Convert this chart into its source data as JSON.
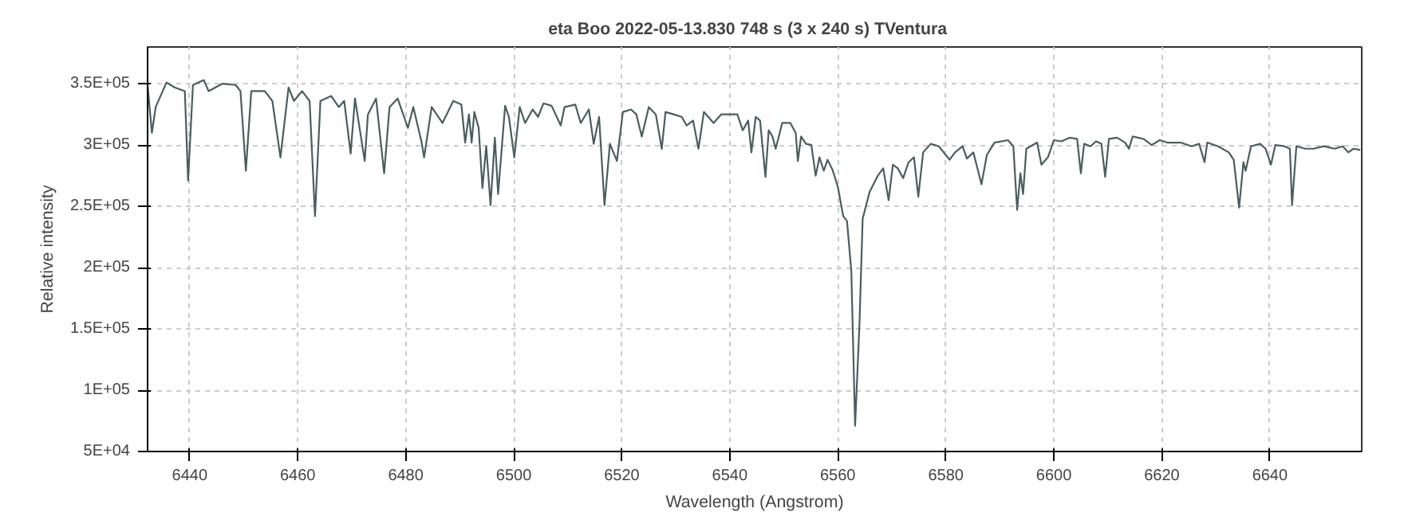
{
  "chart_data": {
    "type": "line",
    "title": "eta Boo  2022-05-13.830  748 s (3 x 240 s)  TVentura",
    "xlabel": "Wavelength (Angstrom)",
    "ylabel": "Relative intensity",
    "x": [
      6432.2,
      6433.0,
      6433.7,
      6435.7,
      6437.2,
      6439.1,
      6439.7,
      6440.6,
      6442.6,
      6443.5,
      6446.0,
      6448.5,
      6449.4,
      6450.4,
      6451.4,
      6453.9,
      6455.3,
      6456.8,
      6458.3,
      6459.3,
      6460.8,
      6462.2,
      6463.2,
      6464.2,
      6466.2,
      6467.6,
      6468.6,
      6469.8,
      6470.6,
      6472.4,
      6473.0,
      6474.5,
      6476.0,
      6477.0,
      6478.5,
      6480.4,
      6481.4,
      6482.9,
      6483.4,
      6484.8,
      6486.8,
      6488.8,
      6490.3,
      6491.0,
      6491.7,
      6492.2,
      6492.7,
      6493.5,
      6494.2,
      6494.9,
      6495.7,
      6496.5,
      6497.1,
      6498.4,
      6499.1,
      6500.1,
      6501.1,
      6502.1,
      6503.5,
      6504.5,
      6505.5,
      6507.0,
      6508.7,
      6509.4,
      6511.4,
      6512.4,
      6513.9,
      6514.8,
      6515.8,
      6516.8,
      6517.8,
      6519.1,
      6520.2,
      6521.7,
      6522.7,
      6523.7,
      6525.0,
      6526.3,
      6527.4,
      6528.1,
      6529.6,
      6531.1,
      6532.0,
      6533.2,
      6534.2,
      6535.2,
      6537.0,
      6538.4,
      6539.9,
      6541.4,
      6542.4,
      6543.4,
      6544.0,
      6544.8,
      6545.6,
      6546.6,
      6547.2,
      6547.9,
      6548.5,
      6549.7,
      6551.2,
      6552.2,
      6552.6,
      6553.2,
      6554.1,
      6555.1,
      6555.9,
      6556.6,
      6557.4,
      6558.1,
      6559.0,
      6560.0,
      6561.0,
      6561.7,
      6562.5,
      6563.2,
      6564.0,
      6564.6,
      6565.9,
      6567.4,
      6568.4,
      6569.4,
      6570.2,
      6571.1,
      6572.1,
      6573.1,
      6574.1,
      6574.9,
      6575.8,
      6577.2,
      6578.7,
      6580.7,
      6581.7,
      6583.1,
      6583.9,
      6585.1,
      6586.6,
      6587.6,
      6589.0,
      6591.5,
      6592.5,
      6593.2,
      6593.8,
      6594.3,
      6594.9,
      6596.9,
      6597.7,
      6598.9,
      6600.0,
      6601.4,
      6602.9,
      6604.3,
      6605.0,
      6605.6,
      6606.8,
      6607.8,
      6608.8,
      6609.5,
      6610.2,
      6611.7,
      6613.2,
      6613.9,
      6614.6,
      6616.6,
      6618.1,
      6619.6,
      6621.0,
      6623.5,
      6625.5,
      6626.9,
      6627.9,
      6628.4,
      6630.4,
      6632.4,
      6633.3,
      6634.3,
      6635.1,
      6635.5,
      6636.5,
      6638.2,
      6639.2,
      6640.2,
      6641.0,
      6642.7,
      6643.7,
      6644.1,
      6644.9,
      6646.6,
      6648.1,
      6650.0,
      6652.0,
      6653.5,
      6654.5,
      6655.5,
      6656.7
    ],
    "series": [
      {
        "color": "#4a5e5e",
        "values": [
          349000,
          310000,
          331000,
          351000,
          347000,
          344000,
          271000,
          349000,
          353000,
          344000,
          350000,
          349000,
          344000,
          279000,
          344000,
          344000,
          336000,
          290000,
          347000,
          336000,
          344000,
          336000,
          242000,
          336000,
          340000,
          331000,
          336000,
          293000,
          338000,
          287000,
          325000,
          338000,
          277000,
          331000,
          338000,
          314000,
          331000,
          303000,
          290000,
          331000,
          318000,
          336000,
          333000,
          302000,
          325000,
          302000,
          327000,
          314000,
          265000,
          299000,
          251000,
          306000,
          260000,
          332000,
          323000,
          290000,
          331000,
          318000,
          329000,
          323000,
          334000,
          332000,
          316000,
          331000,
          333000,
          318000,
          329000,
          301000,
          323000,
          251000,
          301000,
          287000,
          327000,
          329000,
          325000,
          307000,
          331000,
          325000,
          297000,
          327000,
          325000,
          323000,
          316000,
          320000,
          297000,
          327000,
          318000,
          325000,
          325000,
          325000,
          312000,
          320000,
          294000,
          323000,
          320000,
          274000,
          312000,
          307000,
          297000,
          318000,
          318000,
          310000,
          287000,
          307000,
          301000,
          300000,
          275000,
          290000,
          279000,
          288000,
          280000,
          266000,
          242000,
          238000,
          197000,
          71000,
          153000,
          240000,
          262000,
          275000,
          281000,
          255000,
          284000,
          281000,
          273000,
          286000,
          290000,
          258000,
          294000,
          301000,
          299000,
          288000,
          294000,
          299000,
          289000,
          294000,
          268000,
          292000,
          302000,
          304000,
          299000,
          247000,
          277000,
          260000,
          297000,
          302000,
          284000,
          290000,
          304000,
          303000,
          306000,
          305000,
          277000,
          301000,
          299000,
          303000,
          301000,
          274000,
          305000,
          306000,
          302000,
          297000,
          307000,
          305000,
          300000,
          304000,
          302000,
          302000,
          299000,
          301000,
          286000,
          302000,
          299000,
          294000,
          288000,
          249000,
          286000,
          279000,
          299000,
          301000,
          297000,
          284000,
          300000,
          299000,
          297000,
          251000,
          299000,
          297000,
          297000,
          299000,
          297000,
          299000,
          294000,
          297000,
          296000
        ]
      }
    ],
    "xlim": [
      6432.2,
      6657
    ],
    "ylim": [
      50000,
      380000
    ],
    "xticks": [
      6440,
      6460,
      6480,
      6500,
      6520,
      6540,
      6560,
      6580,
      6600,
      6620,
      6640
    ],
    "yticks": [
      {
        "value": 50000,
        "label": "5E+04"
      },
      {
        "value": 100000,
        "label": "1E+05"
      },
      {
        "value": 150000,
        "label": "1.5E+05"
      },
      {
        "value": 200000,
        "label": "2E+05"
      },
      {
        "value": 250000,
        "label": "2.5E+05"
      },
      {
        "value": 300000,
        "label": "3E+05"
      },
      {
        "value": 350000,
        "label": "3.5E+05"
      }
    ],
    "grid": true
  }
}
